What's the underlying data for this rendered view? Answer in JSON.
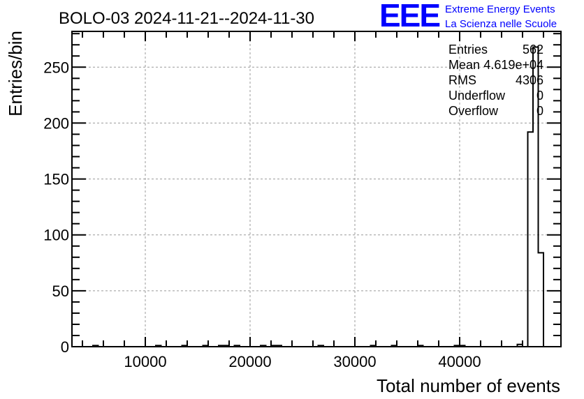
{
  "chart_data": {
    "type": "bar",
    "title": "BOLO-03 2024-11-21--2024-11-30",
    "xlabel": "Total number of events",
    "ylabel": "Entries/bin",
    "xlim": [
      3000,
      49667
    ],
    "ylim": [
      0,
      282
    ],
    "bin_width": 500,
    "grid": true,
    "x_ticks": [
      10000,
      20000,
      30000,
      40000
    ],
    "y_ticks": [
      0,
      50,
      100,
      150,
      200,
      250
    ],
    "bins": [
      {
        "x": 5000,
        "count": 1
      },
      {
        "x": 11000,
        "count": 1
      },
      {
        "x": 13500,
        "count": 1
      },
      {
        "x": 15500,
        "count": 1
      },
      {
        "x": 17000,
        "count": 1
      },
      {
        "x": 17500,
        "count": 1
      },
      {
        "x": 18500,
        "count": 1
      },
      {
        "x": 21000,
        "count": 1
      },
      {
        "x": 22000,
        "count": 1
      },
      {
        "x": 22500,
        "count": 1
      },
      {
        "x": 26500,
        "count": 1
      },
      {
        "x": 31500,
        "count": 1
      },
      {
        "x": 33500,
        "count": 1
      },
      {
        "x": 36000,
        "count": 1
      },
      {
        "x": 39500,
        "count": 1
      },
      {
        "x": 40000,
        "count": 1
      },
      {
        "x": 45500,
        "count": 2
      },
      {
        "x": 46500,
        "count": 192
      },
      {
        "x": 47000,
        "count": 268
      },
      {
        "x": 47500,
        "count": 84
      }
    ],
    "stats": [
      {
        "label": "Entries",
        "value": "562"
      },
      {
        "label": "Mean",
        "value": "4.619e+04"
      },
      {
        "label": "RMS",
        "value": "4306"
      },
      {
        "label": "Underflow",
        "value": "0"
      },
      {
        "label": "Overflow",
        "value": "0"
      }
    ]
  },
  "logo": {
    "mark": "EEE",
    "line1": "Extreme Energy Events",
    "line2": "La Scienza nelle Scuole",
    "color": "#0000ff"
  }
}
